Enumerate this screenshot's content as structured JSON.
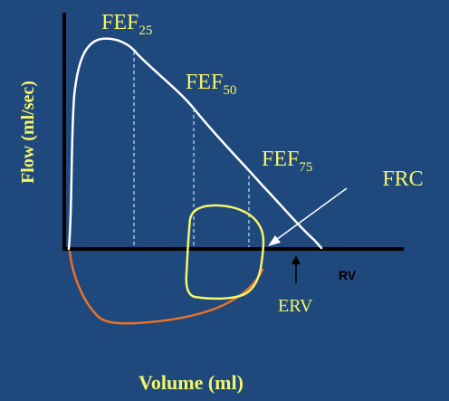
{
  "colors": {
    "background": "#1f487c",
    "axis": "#000000",
    "curve_max": "#ffffff",
    "curve_tidal": "#f5f56a",
    "curve_inspiratory": "#e8722a",
    "text_yellow": "#f5f56a",
    "text_white": "#ffffff",
    "text_dark": "#000000"
  },
  "labels": {
    "fef25": {
      "base": "FEF",
      "sub": "25"
    },
    "fef50": {
      "base": "FEF",
      "sub": "50"
    },
    "fef75": {
      "base": "FEF",
      "sub": "75"
    },
    "frc": "FRC",
    "rv": "RV",
    "erv": "ERV",
    "y_axis": "Flow (ml/sec)",
    "x_axis": "Volume (ml)"
  }
}
